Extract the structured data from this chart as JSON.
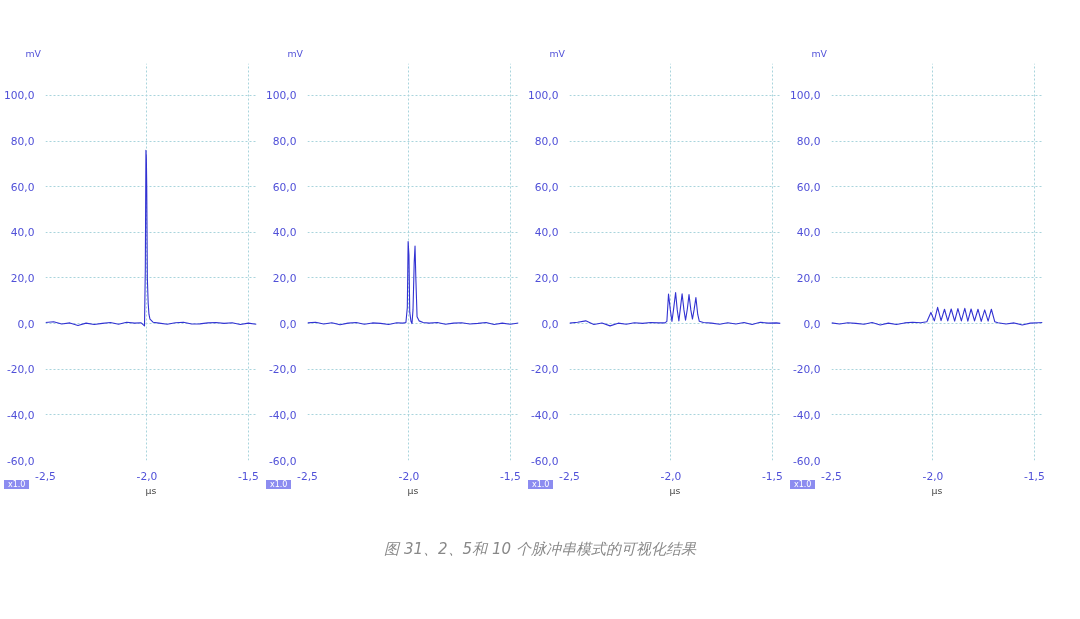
{
  "chart_data": [
    {
      "type": "line",
      "ylabel": "mV",
      "xlabel": "µs",
      "annotations": [
        "x1.0",
        "图 31、2、5和 10 个脉冲串模式的可视化结果"
      ],
      "grid": true,
      "marker": "none",
      "line_style": "solid",
      "xlim": [
        -2.5,
        -1.46
      ],
      "ylim": [
        -60,
        114
      ],
      "xticks": [
        {
          "value": -2.5,
          "label": "-2,5"
        },
        {
          "value": -2.0,
          "label": "-2,0"
        },
        {
          "value": -1.5,
          "label": "-1,5"
        }
      ],
      "yticks": [
        {
          "value": -60,
          "label": "-60,0"
        },
        {
          "value": -40,
          "label": "-40,0"
        },
        {
          "value": -20,
          "label": "-20,0"
        },
        {
          "value": 0,
          "label": "0,0"
        },
        {
          "value": 20,
          "label": "20,0"
        },
        {
          "value": 40,
          "label": "40,0"
        },
        {
          "value": 60,
          "label": "60,0"
        },
        {
          "value": 80,
          "label": "80,0"
        },
        {
          "value": 100,
          "label": "100,0"
        }
      ],
      "series": [
        {
          "color": "#3232d2",
          "x": [
            -2.5,
            -2.46,
            -2.42,
            -2.38,
            -2.34,
            -2.3,
            -2.26,
            -2.22,
            -2.18,
            -2.14,
            -2.1,
            -2.06,
            -2.03,
            -2.012,
            -2.008,
            -2.005,
            -2.003,
            -2.001,
            -1.998,
            -1.994,
            -1.99,
            -1.985,
            -1.97,
            -1.94,
            -1.9,
            -1.86,
            -1.82,
            -1.78,
            -1.74,
            -1.7,
            -1.66,
            -1.62,
            -1.58,
            -1.54,
            -1.5,
            -1.46
          ],
          "values": [
            0.5,
            0.8,
            -0.2,
            0.3,
            -0.8,
            0.2,
            -0.4,
            0.1,
            0.5,
            -0.3,
            0.6,
            0.2,
            0.4,
            -1.0,
            24,
            76,
            73,
            60,
            20,
            9,
            4,
            2,
            0.6,
            0.2,
            -0.3,
            0.4,
            0.6,
            -0.2,
            -0.1,
            0.3,
            0.5,
            0.1,
            0.4,
            -0.4,
            0.2,
            -0.3
          ]
        }
      ]
    },
    {
      "type": "line",
      "ylabel": "mV",
      "xlabel": "µs",
      "annotations": [
        "x1.0"
      ],
      "grid": true,
      "marker": "none",
      "line_style": "solid",
      "xlim": [
        -2.5,
        -1.46
      ],
      "ylim": [
        -60,
        114
      ],
      "xticks": [
        {
          "value": -2.5,
          "label": "-2,5"
        },
        {
          "value": -2.0,
          "label": "-2,0"
        },
        {
          "value": -1.5,
          "label": "-1,5"
        }
      ],
      "yticks": [
        {
          "value": -60,
          "label": "-60,0"
        },
        {
          "value": -40,
          "label": "-40,0"
        },
        {
          "value": -20,
          "label": "-20,0"
        },
        {
          "value": 0,
          "label": "0,0"
        },
        {
          "value": 20,
          "label": "20,0"
        },
        {
          "value": 40,
          "label": "40,0"
        },
        {
          "value": 60,
          "label": "60,0"
        },
        {
          "value": 80,
          "label": "80,0"
        },
        {
          "value": 100,
          "label": "100,0"
        }
      ],
      "series": [
        {
          "color": "#3232d2",
          "x": [
            -2.5,
            -2.46,
            -2.42,
            -2.38,
            -2.34,
            -2.3,
            -2.26,
            -2.22,
            -2.18,
            -2.14,
            -2.1,
            -2.06,
            -2.03,
            -2.015,
            -2.008,
            -2.004,
            -2.0,
            -1.996,
            -1.99,
            -1.985,
            -1.98,
            -1.974,
            -1.97,
            -1.966,
            -1.96,
            -1.95,
            -1.93,
            -1.9,
            -1.86,
            -1.82,
            -1.78,
            -1.74,
            -1.7,
            -1.66,
            -1.62,
            -1.58,
            -1.54,
            -1.5,
            -1.46
          ],
          "values": [
            0.3,
            0.6,
            -0.2,
            0.4,
            -0.5,
            0.2,
            0.5,
            -0.3,
            0.3,
            0.1,
            -0.4,
            0.4,
            0.2,
            0.5,
            7,
            36,
            30,
            5,
            1,
            0,
            6,
            27,
            34,
            20,
            3,
            1.2,
            0.5,
            0.2,
            0.5,
            -0.3,
            0.2,
            0.4,
            -0.2,
            0.1,
            0.5,
            -0.4,
            0.2,
            -0.3,
            0.3
          ]
        }
      ]
    },
    {
      "type": "line",
      "ylabel": "mV",
      "xlabel": "µs",
      "annotations": [
        "x1.0"
      ],
      "grid": true,
      "marker": "none",
      "line_style": "solid",
      "xlim": [
        -2.5,
        -1.46
      ],
      "ylim": [
        -60,
        114
      ],
      "xticks": [
        {
          "value": -2.5,
          "label": "-2,5"
        },
        {
          "value": -2.0,
          "label": "-2,0"
        },
        {
          "value": -1.5,
          "label": "-1,5"
        }
      ],
      "yticks": [
        {
          "value": -60,
          "label": "-60,0"
        },
        {
          "value": -40,
          "label": "-40,0"
        },
        {
          "value": -20,
          "label": "-20,0"
        },
        {
          "value": 0,
          "label": "0,0"
        },
        {
          "value": 20,
          "label": "20,0"
        },
        {
          "value": 40,
          "label": "40,0"
        },
        {
          "value": 60,
          "label": "60,0"
        },
        {
          "value": 80,
          "label": "80,0"
        },
        {
          "value": 100,
          "label": "100,0"
        }
      ],
      "series": [
        {
          "color": "#3232d2",
          "x": [
            -2.5,
            -2.46,
            -2.42,
            -2.38,
            -2.34,
            -2.3,
            -2.26,
            -2.22,
            -2.18,
            -2.14,
            -2.1,
            -2.06,
            -2.03,
            -2.02,
            -2.012,
            -2.003,
            -1.995,
            -1.986,
            -1.977,
            -1.969,
            -1.961,
            -1.953,
            -1.945,
            -1.936,
            -1.928,
            -1.919,
            -1.911,
            -1.902,
            -1.894,
            -1.886,
            -1.877,
            -1.868,
            -1.86,
            -1.84,
            -1.8,
            -1.76,
            -1.72,
            -1.68,
            -1.64,
            -1.6,
            -1.56,
            -1.52,
            -1.48,
            -1.46
          ],
          "values": [
            0.2,
            0.6,
            1.2,
            -0.4,
            0.3,
            -1.0,
            0.2,
            -0.3,
            0.4,
            0.1,
            0.5,
            0.3,
            0.3,
            1,
            12.9,
            6,
            1,
            7,
            13.6,
            6,
            1.2,
            7,
            13.1,
            6,
            1.5,
            6.5,
            12.7,
            6,
            2,
            6,
            11.4,
            4,
            1,
            0.5,
            0.2,
            -0.3,
            0.4,
            -0.2,
            0.5,
            -0.4,
            0.6,
            0.2,
            0.3,
            0.1
          ]
        }
      ]
    },
    {
      "type": "line",
      "ylabel": "mV",
      "xlabel": "µs",
      "annotations": [
        "x1.0"
      ],
      "grid": true,
      "marker": "none",
      "line_style": "solid",
      "xlim": [
        -2.5,
        -1.46
      ],
      "ylim": [
        -60,
        114
      ],
      "xticks": [
        {
          "value": -2.5,
          "label": "-2,5"
        },
        {
          "value": -2.0,
          "label": "-2,0"
        },
        {
          "value": -1.5,
          "label": "-1,5"
        }
      ],
      "yticks": [
        {
          "value": -60,
          "label": "-60,0"
        },
        {
          "value": -40,
          "label": "-40,0"
        },
        {
          "value": -20,
          "label": "-20,0"
        },
        {
          "value": 0,
          "label": "0,0"
        },
        {
          "value": 20,
          "label": "20,0"
        },
        {
          "value": 40,
          "label": "40,0"
        },
        {
          "value": 60,
          "label": "60,0"
        },
        {
          "value": 80,
          "label": "80,0"
        },
        {
          "value": 100,
          "label": "100,0"
        }
      ],
      "series": [
        {
          "color": "#3232d2",
          "x": [
            -2.5,
            -2.46,
            -2.42,
            -2.38,
            -2.34,
            -2.3,
            -2.26,
            -2.22,
            -2.18,
            -2.14,
            -2.1,
            -2.06,
            -2.03,
            -2.01,
            -1.993,
            -1.977,
            -1.96,
            -1.943,
            -1.927,
            -1.91,
            -1.893,
            -1.877,
            -1.86,
            -1.843,
            -1.828,
            -1.812,
            -1.795,
            -1.778,
            -1.762,
            -1.745,
            -1.728,
            -1.712,
            -1.695,
            -1.68,
            -1.64,
            -1.6,
            -1.56,
            -1.52,
            -1.48,
            -1.46
          ],
          "values": [
            0.3,
            -0.2,
            0.4,
            0.1,
            -0.3,
            0.5,
            -0.6,
            0.2,
            -0.4,
            0.3,
            0.6,
            0.4,
            0.8,
            4.9,
            1.2,
            7.1,
            1.3,
            6.3,
            1.2,
            6.4,
            1.1,
            6.6,
            1.2,
            6.7,
            1.1,
            6.4,
            1.2,
            6.3,
            1.0,
            6.0,
            1.1,
            6.3,
            0.8,
            0.4,
            -0.2,
            0.3,
            -0.6,
            0.2,
            0.4,
            0.5
          ]
        }
      ]
    }
  ]
}
